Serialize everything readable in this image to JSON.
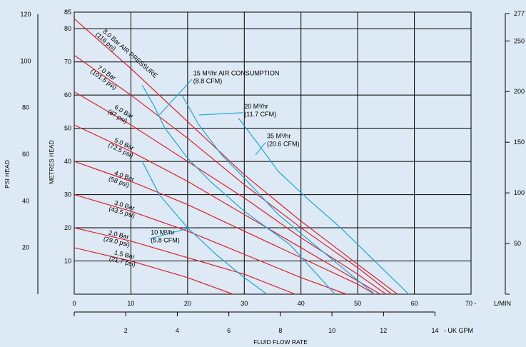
{
  "colors": {
    "background": "#dde9f4",
    "pressure_curve": "#e0202a",
    "air_curve": "#1aa7d8",
    "grid": "#000000"
  },
  "chart_data": {
    "type": "line",
    "xlabel": "FLUID FLOW RATE",
    "x_unit_primary": "L/MIN",
    "x_unit_secondary": "- UK GPM",
    "ylabel_left": "PSI HEAD",
    "ylabel_inner": "METRES HEAD",
    "xlim": [
      0,
      70
    ],
    "ylim": [
      0,
      85
    ],
    "x_ticks": [
      "0",
      "10",
      "20",
      "30",
      "40",
      "50",
      "60",
      "70 -"
    ],
    "gpm_ticks": [
      "2",
      "4",
      "6",
      "8",
      "10",
      "12",
      "14"
    ],
    "metre_ticks": [
      "85",
      "80",
      "70",
      "60",
      "50",
      "40",
      "30",
      "20",
      "10"
    ],
    "psi_ticks": [
      "120",
      "100",
      "80",
      "60",
      "40",
      "20"
    ],
    "right_ticks": [
      "277",
      "250",
      "200",
      "150",
      "100",
      "50"
    ],
    "pressure_series": [
      {
        "label_line1": "8.0 Bar AIR PRESSURE",
        "label_line2": "(116 psi)",
        "x": [
          0,
          10,
          20,
          30,
          40,
          50,
          57
        ],
        "y": [
          83,
          68,
          52,
          36,
          22,
          9,
          0
        ]
      },
      {
        "label_line1": "7.0 Bar",
        "label_line2": "(101.5 psi)",
        "x": [
          0,
          10,
          20,
          30,
          40,
          50,
          56
        ],
        "y": [
          72,
          60,
          47,
          33,
          20,
          8,
          0
        ]
      },
      {
        "label_line1": "6.0 Bar",
        "label_line2": "(87 psi)",
        "x": [
          0,
          10,
          20,
          30,
          40,
          50,
          55
        ],
        "y": [
          61,
          51,
          40,
          29,
          17,
          6,
          0
        ]
      },
      {
        "label_line1": "5.0 Bar",
        "label_line2": "(72.5 psi)",
        "x": [
          0,
          10,
          20,
          30,
          40,
          50,
          54
        ],
        "y": [
          51,
          43,
          34,
          24,
          14,
          4,
          0
        ]
      },
      {
        "label_line1": "4.0 Bar",
        "label_line2": "(58 psi)",
        "x": [
          0,
          10,
          20,
          30,
          40,
          50,
          53
        ],
        "y": [
          40,
          34,
          27,
          19,
          11,
          3,
          0
        ]
      },
      {
        "label_line1": "3.0 Bar",
        "label_line2": "(43.5 psi)",
        "x": [
          0,
          10,
          20,
          30,
          40,
          48
        ],
        "y": [
          30,
          25,
          19,
          12,
          5,
          0
        ]
      },
      {
        "label_line1": "2.0 Bar",
        "label_line2": "(29.0 psi)",
        "x": [
          0,
          10,
          20,
          30,
          39
        ],
        "y": [
          20,
          16,
          11,
          6,
          0
        ]
      },
      {
        "label_line1": "1.5 Bar",
        "label_line2": "(21.7 psi)",
        "x": [
          0,
          10,
          20,
          28
        ],
        "y": [
          14,
          10,
          5,
          0
        ]
      }
    ],
    "air_series": [
      {
        "label_line1": "10 M³/hr",
        "label_line2": "(5.8 CFM)",
        "x": [
          12,
          15,
          20,
          25,
          30,
          34
        ],
        "y": [
          40,
          30,
          20,
          12,
          5,
          0
        ]
      },
      {
        "label_line1": "15 M³/hr AIR CONSUMPTION",
        "label_line2": "(8.8 CFM)",
        "x": [
          12,
          14,
          16,
          20,
          24,
          30,
          38,
          46
        ],
        "y": [
          63,
          57,
          50,
          41,
          34,
          25,
          15,
          0
        ]
      },
      {
        "label_line1": "20 M³/hr",
        "label_line2": "(11.7 CFM)",
        "x": [
          19,
          22,
          26,
          30,
          36,
          43,
          53
        ],
        "y": [
          60,
          51,
          42,
          35,
          24,
          14,
          0
        ]
      },
      {
        "label_line1": "35 M³/hr",
        "label_line2": "(20.6 CFM)",
        "x": [
          29,
          33,
          36,
          41,
          47,
          53,
          59
        ],
        "y": [
          53,
          44,
          37,
          29,
          20,
          10,
          0
        ]
      }
    ]
  }
}
